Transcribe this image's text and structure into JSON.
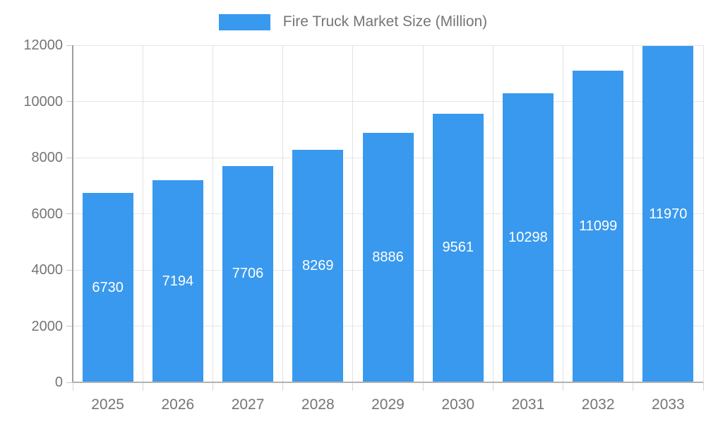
{
  "chart_data": {
    "type": "bar",
    "title": "",
    "legend": [
      "Fire Truck Market Size (Million)"
    ],
    "legend_position": "top",
    "categories": [
      "2025",
      "2026",
      "2027",
      "2028",
      "2029",
      "2030",
      "2031",
      "2032",
      "2033"
    ],
    "values": [
      6730,
      7194,
      7706,
      8269,
      8886,
      9561,
      10298,
      11099,
      11970
    ],
    "value_labels_shown": true,
    "xlabel": "",
    "ylabel": "",
    "ylim": [
      0,
      12000
    ],
    "yticks": [
      0,
      2000,
      4000,
      6000,
      8000,
      10000,
      12000
    ],
    "grid": true,
    "colors": {
      "bar": "#3999EE",
      "value_label": "#ffffff",
      "axis_text": "#757575",
      "legend_text": "#757575",
      "gridline": "#e5e5e5",
      "axis_line": "#a8a8a8",
      "background": "#ffffff"
    }
  }
}
